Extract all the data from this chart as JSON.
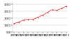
{
  "years": [
    2000,
    2001,
    2002,
    2003,
    2004,
    2005,
    2006,
    2007,
    2008,
    2009,
    2010,
    2011
  ],
  "values": [
    1100,
    1200,
    1350,
    1400,
    1400,
    1550,
    1700,
    1900,
    2100,
    2050,
    2200,
    2350
  ],
  "line_color": "#d94040",
  "marker": "o",
  "marker_size": 1.0,
  "linewidth": 0.6,
  "ylim": [
    500,
    2700
  ],
  "yticks": [
    500,
    1000,
    1500,
    2000,
    2500
  ],
  "grid_color": "#cccccc",
  "background_color": "#ffffff",
  "tick_fontsize": 2.8,
  "spine_color": "#aaaaaa"
}
